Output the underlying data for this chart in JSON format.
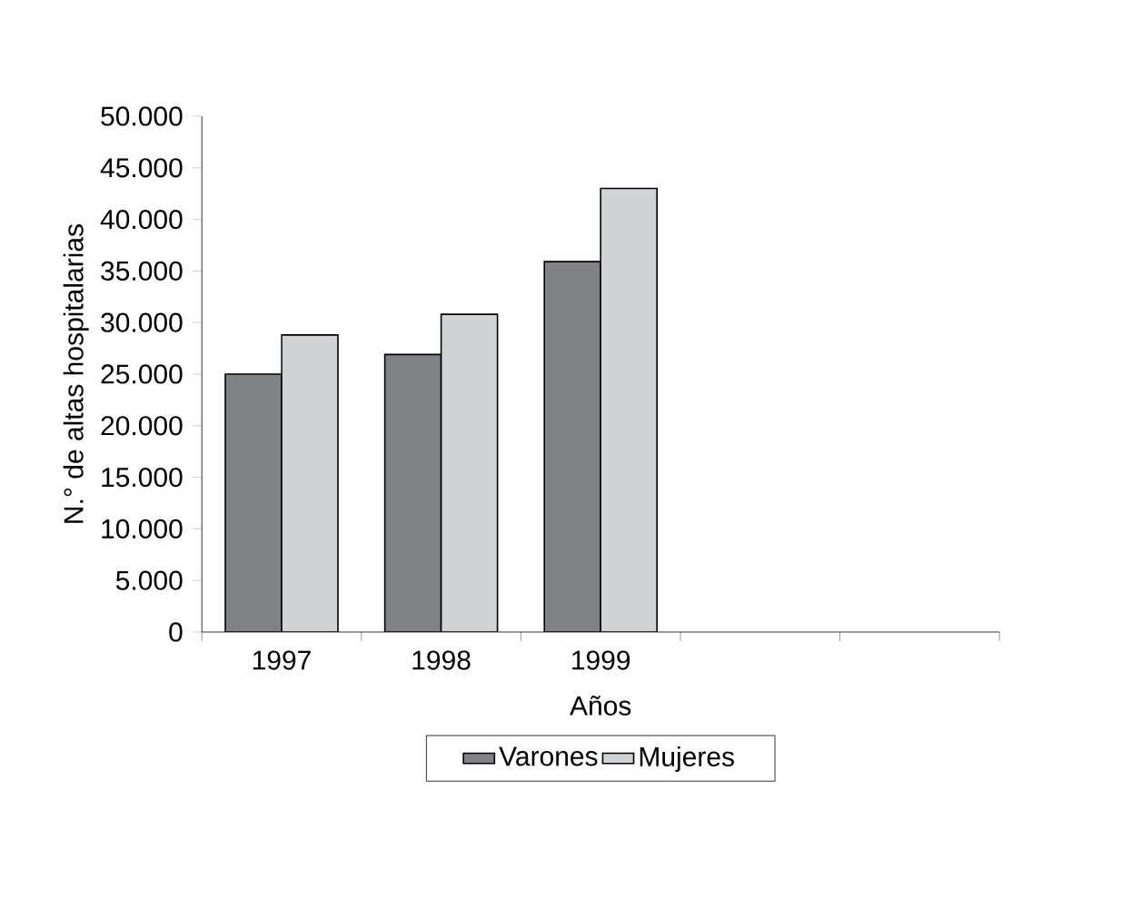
{
  "chart_data": {
    "type": "bar",
    "categories": [
      "1997",
      "1998",
      "1999",
      null,
      null
    ],
    "xlabel": "Años",
    "ylabel": "N.° de altas hospitalarias",
    "ylim": [
      0,
      50000
    ],
    "yticks": [
      0,
      {
        "value": 5000,
        "label": "5.000"
      },
      {
        "value": 10000,
        "label": "10.000"
      },
      {
        "value": 15000,
        "label": "15.000"
      },
      {
        "value": 20000,
        "label": "20.000"
      },
      {
        "value": 25000,
        "label": "25.000"
      },
      {
        "value": 30000,
        "label": "30.000"
      },
      {
        "value": 35000,
        "label": "35.000"
      },
      {
        "value": 40000,
        "label": "40.000"
      },
      {
        "value": 45000,
        "label": "45.000"
      },
      {
        "value": 50000,
        "label": "50.000"
      }
    ],
    "series": [
      {
        "name": "Varones",
        "color": "#808285",
        "values": [
          25000,
          26900,
          35900,
          null,
          null
        ]
      },
      {
        "name": "Mujeres",
        "color": "#d1d3d4",
        "values": [
          28800,
          30800,
          43000,
          null,
          null
        ]
      }
    ],
    "legend": "bottom"
  }
}
